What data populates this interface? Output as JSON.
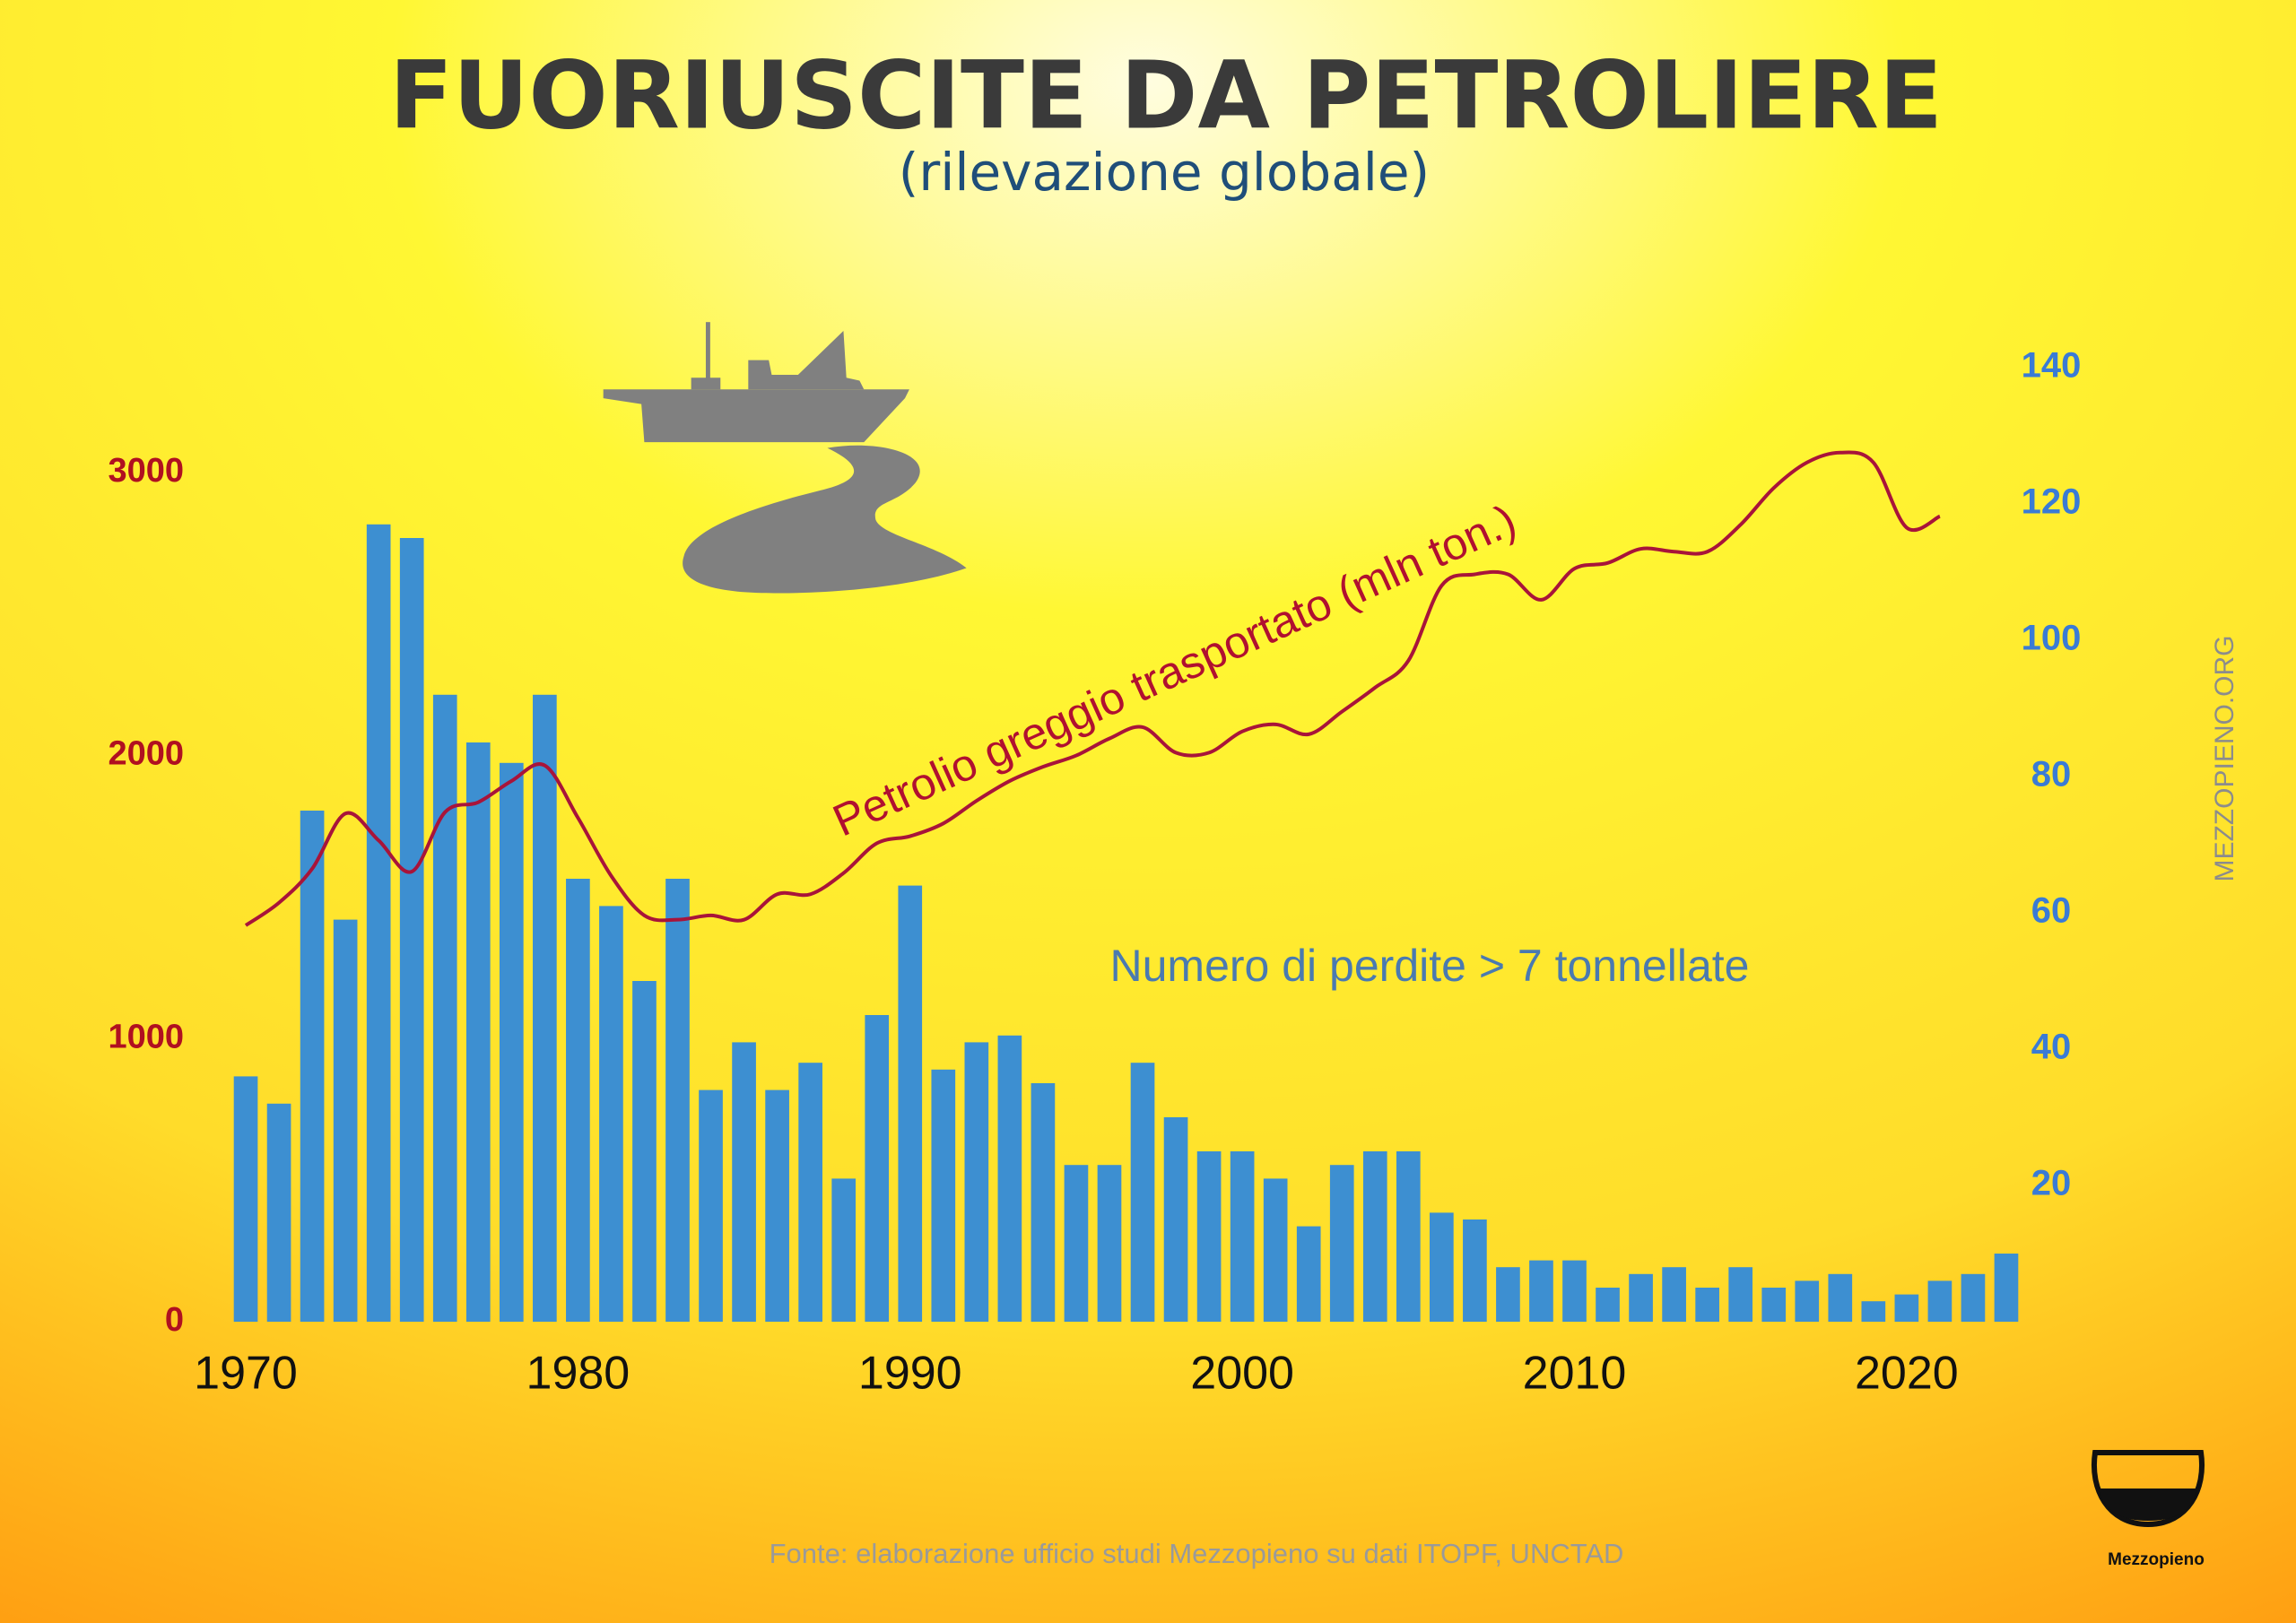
{
  "chart_data": {
    "type": "combo",
    "title": "FUORIUSCITE DA PETROLIERE",
    "subtitle": "(rilevazione globale)",
    "x": [
      1970,
      1971,
      1972,
      1973,
      1974,
      1975,
      1976,
      1977,
      1978,
      1979,
      1980,
      1981,
      1982,
      1983,
      1984,
      1985,
      1986,
      1987,
      1988,
      1989,
      1990,
      1991,
      1992,
      1993,
      1994,
      1995,
      1996,
      1997,
      1998,
      1999,
      2000,
      2001,
      2002,
      2003,
      2004,
      2005,
      2006,
      2007,
      2008,
      2009,
      2010,
      2011,
      2012,
      2013,
      2014,
      2015,
      2016,
      2017,
      2018,
      2019,
      2020,
      2021,
      2022,
      2023
    ],
    "xlim": [
      1969.5,
      2023.5
    ],
    "xticks": [
      1970,
      1980,
      1990,
      2000,
      2010,
      2020
    ],
    "ylim": [
      0,
      3370
    ],
    "yticks": [
      0,
      1000,
      2000,
      3000
    ],
    "y2lim": [
      0,
      140
    ],
    "y2ticks": [
      20,
      40,
      60,
      80,
      100,
      120,
      140
    ],
    "grid": false,
    "series": [
      {
        "name": "Numero di perdite > 7 tonnellate",
        "type": "bar",
        "axis": "y2",
        "color": "#3d8fd1",
        "values": [
          36,
          32,
          75,
          59,
          117,
          115,
          92,
          85,
          82,
          92,
          65,
          61,
          50,
          65,
          34,
          41,
          34,
          38,
          21,
          45,
          64,
          37,
          41,
          42,
          35,
          23,
          23,
          38,
          30,
          25,
          25,
          21,
          14,
          23,
          25,
          25,
          16,
          15,
          8,
          9,
          9,
          5,
          7,
          8,
          5,
          8,
          5,
          6,
          7,
          3,
          4,
          6,
          7,
          10
        ]
      },
      {
        "name": "Petrolio greggio trasportato (mln ton.)",
        "type": "line",
        "color": "#a8143a",
        "values": [
          1400,
          1480,
          1600,
          1795,
          1700,
          1590,
          1800,
          1835,
          1910,
          1965,
          1780,
          1575,
          1435,
          1420,
          1435,
          1420,
          1510,
          1510,
          1585,
          1690,
          1715,
          1760,
          1840,
          1910,
          1960,
          2000,
          2060,
          2100,
          2010,
          2010,
          2085,
          2110,
          2075,
          2155,
          2240,
          2335,
          2600,
          2640,
          2640,
          2550,
          2660,
          2680,
          2730,
          2720,
          2720,
          2815,
          2945,
          3035,
          3070,
          3035,
          2805,
          2845,
          null,
          null
        ]
      }
    ]
  },
  "watermark": "MEZZOPIENO.ORG",
  "footer": {
    "source": "Fonte: elaborazione ufficio studi Mezzopieno su dati ITOPF, UNCTAD",
    "logo": "Mezzopieno"
  }
}
